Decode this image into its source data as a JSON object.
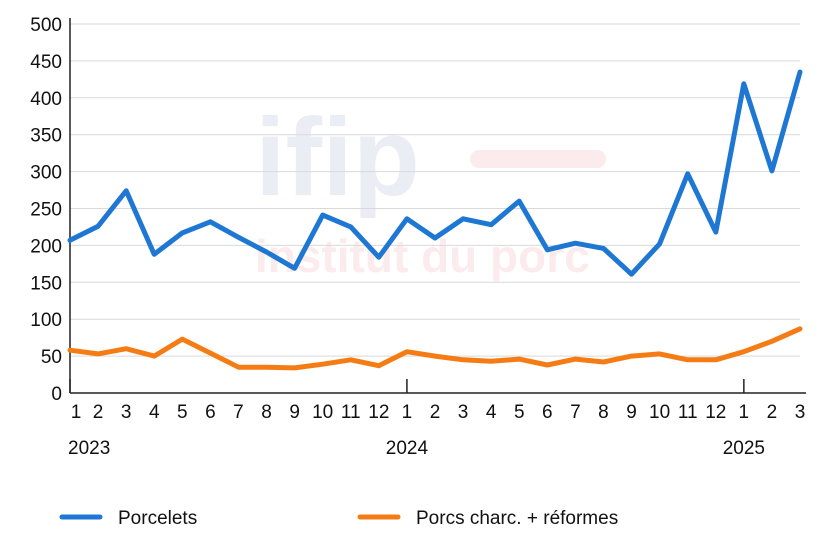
{
  "chart_data": {
    "type": "line",
    "title": "",
    "xlabel": "",
    "ylabel": "",
    "ylim": [
      0,
      500
    ],
    "yticks": [
      0,
      50,
      100,
      150,
      200,
      250,
      300,
      350,
      400,
      450,
      500
    ],
    "grid": true,
    "legend_position": "bottom",
    "categories": [
      "1",
      "2",
      "3",
      "4",
      "5",
      "6",
      "7",
      "8",
      "9",
      "10",
      "11",
      "12",
      "1",
      "2",
      "3",
      "4",
      "5",
      "6",
      "7",
      "8",
      "9",
      "10",
      "11",
      "12",
      "1",
      "2",
      "3"
    ],
    "year_labels": [
      {
        "label": "2023",
        "index": 0
      },
      {
        "label": "2024",
        "index": 12
      },
      {
        "label": "2025",
        "index": 24
      }
    ],
    "series": [
      {
        "name": "Porcelets",
        "color": "#1f77d4",
        "values": [
          207,
          226,
          274,
          188,
          217,
          232,
          211,
          191,
          169,
          241,
          225,
          184,
          236,
          210,
          236,
          228,
          260,
          194,
          203,
          196,
          161,
          202,
          297,
          218,
          419,
          301,
          435
        ]
      },
      {
        "name": "Porcs charc. + réformes",
        "color": "#f57c14",
        "values": [
          58,
          53,
          60,
          50,
          73,
          54,
          35,
          35,
          34,
          39,
          45,
          37,
          56,
          50,
          45,
          43,
          46,
          38,
          46,
          42,
          50,
          53,
          45,
          45,
          56,
          70,
          87
        ]
      }
    ]
  },
  "watermark": {
    "logo": "ifip",
    "subtitle": "institut du porc"
  }
}
